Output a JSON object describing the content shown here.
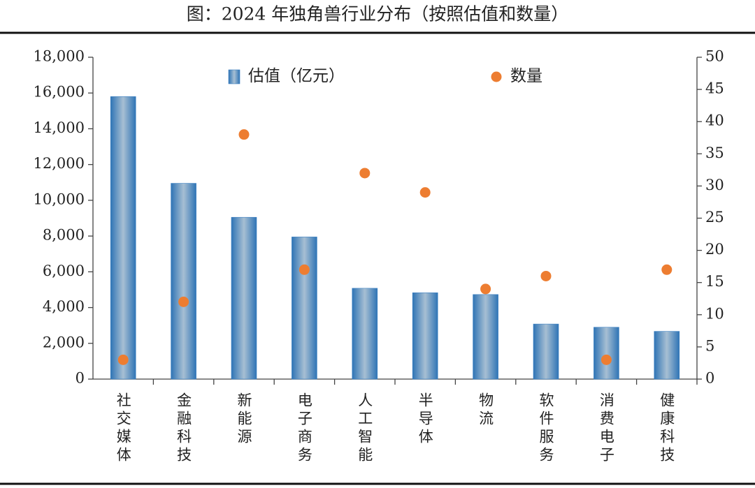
{
  "chart_data": {
    "type": "bar",
    "title": "图：2024 年独角兽行业分布（按照估值和数量）",
    "categories": [
      "社交媒体",
      "金融科技",
      "新能源",
      "电子商务",
      "人工智能",
      "半导体",
      "物流",
      "软件服务",
      "消费电子",
      "健康科技"
    ],
    "series": [
      {
        "name": "估值（亿元）",
        "type": "bar",
        "color": "#3a7fc1",
        "values": [
          15800,
          10950,
          9050,
          7950,
          5080,
          4830,
          4730,
          3080,
          2900,
          2670
        ]
      },
      {
        "name": "数量",
        "type": "scatter",
        "axis": "y2",
        "color": "#ed7d31",
        "values": [
          3,
          12,
          38,
          17,
          32,
          29,
          14,
          16,
          3,
          17
        ]
      }
    ],
    "ylim": [
      0,
      18000
    ],
    "yticks": [
      0,
      {
        "value": 2000,
        "label": "2,000"
      },
      {
        "value": 4000,
        "label": "4,000"
      },
      {
        "value": 6000,
        "label": "6,000"
      },
      {
        "value": 8000,
        "label": "8,000"
      },
      {
        "value": 10000,
        "label": "10,000"
      },
      {
        "value": 12000,
        "label": "12,000"
      },
      {
        "value": 14000,
        "label": "14,000"
      },
      {
        "value": 16000,
        "label": "16,000"
      },
      {
        "value": 18000,
        "label": "18,000"
      }
    ],
    "y2lim": [
      0,
      50
    ],
    "y2ticks": [
      0,
      5,
      10,
      15,
      20,
      25,
      30,
      35,
      40,
      45,
      50
    ],
    "legend": "top"
  }
}
